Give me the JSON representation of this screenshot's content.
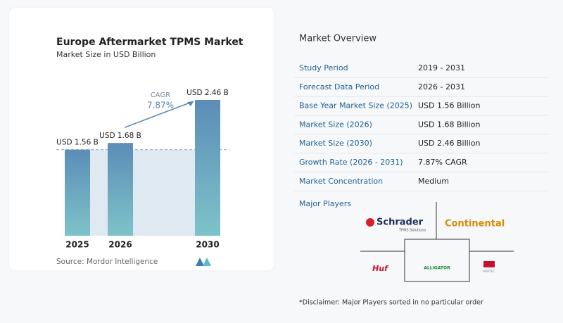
{
  "chart_data": {
    "type": "bar",
    "title": "Europe Aftermarket TPMS Market",
    "subtitle": "Market Size in USD Billion",
    "categories": [
      "2025",
      "2026",
      "2030"
    ],
    "values": [
      1.56,
      1.68,
      2.46
    ],
    "value_labels": [
      "USD 1.56 B",
      "USD 1.68 B",
      "USD 2.46 B"
    ],
    "annotation": {
      "label": "CAGR",
      "value": "7.87%"
    },
    "source": "Source: Mordor Intelligence"
  },
  "overview": {
    "title": "Market Overview",
    "rows": [
      [
        "Study Period",
        "2019 - 2031"
      ],
      [
        "Forecast Data Period",
        "2026 - 2031"
      ],
      [
        "Base Year Market Size (2025)",
        "USD 1.56 Billion"
      ],
      [
        "Market Size (2026)",
        "USD 1.68 Billion"
      ],
      [
        "Market Size (2030)",
        "USD 2.46 Billion"
      ],
      [
        "Growth Rate (2026 - 2031)",
        "7.87% CAGR"
      ],
      [
        "Market Concentration",
        "Medium"
      ]
    ]
  },
  "players": {
    "title": "Major Players",
    "logos": [
      "Schrader",
      "TPMS Solutions",
      "Continental",
      "Huf",
      "ALLIGATOR",
      "MARTEC"
    ]
  },
  "disclaimer": "*Disclaimer: Major Players sorted in no particular order"
}
